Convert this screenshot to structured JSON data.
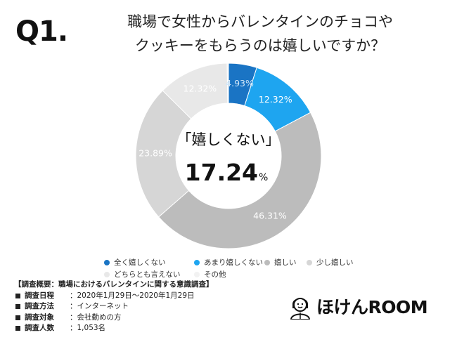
{
  "question": {
    "number": "Q1.",
    "line1": "職場で女性からバレンタインのチョコや",
    "line2": "クッキーをもらうのは嬉しいですか？"
  },
  "chart_data": {
    "type": "pie",
    "donut": true,
    "center_label": "「嬉しくない」",
    "center_value": "17.24",
    "center_unit": "%",
    "slices": [
      {
        "name": "全く嬉しくない",
        "value": 4.93,
        "label": "4.93%",
        "color": "#1a74c4",
        "label_color": "#cfe6f8"
      },
      {
        "name": "あまり嬉しくない",
        "value": 12.32,
        "label": "12.32%",
        "color": "#1ea5f0",
        "label_color": "#ffffff"
      },
      {
        "name": "嬉しい",
        "value": 46.31,
        "label": "46.31%",
        "color": "#bcbcbc",
        "label_color": "#ffffff"
      },
      {
        "name": "少し嬉しい",
        "value": 23.89,
        "label": "23.89%",
        "color": "#d6d6d6",
        "label_color": "#ffffff"
      },
      {
        "name": "どちらとも言えない",
        "value": 12.32,
        "label": "12.32%",
        "color": "#e8e8e8",
        "label_color": "#ffffff"
      },
      {
        "name": "その他",
        "value": 0.23,
        "label": "",
        "color": "#f2f2f2",
        "label_color": "#ffffff"
      }
    ],
    "legend": [
      "全く嬉しくない",
      "あまり嬉しくない",
      "嬉しい",
      "少し嬉しい",
      "どちらとも言えない",
      "その他"
    ]
  },
  "survey": {
    "heading": "【調査概要：職場におけるバレンタインに関する意識調査】",
    "rows": [
      {
        "key": "調査日程",
        "value": "：2020年1月29日〜2020年1月29日"
      },
      {
        "key": "調査方法",
        "value": "：インターネット"
      },
      {
        "key": "調査対象",
        "value": "：会社勤めの方"
      },
      {
        "key": "調査人数",
        "value": "：1,053名"
      }
    ]
  },
  "logo": {
    "text": "ほけんROOM"
  }
}
